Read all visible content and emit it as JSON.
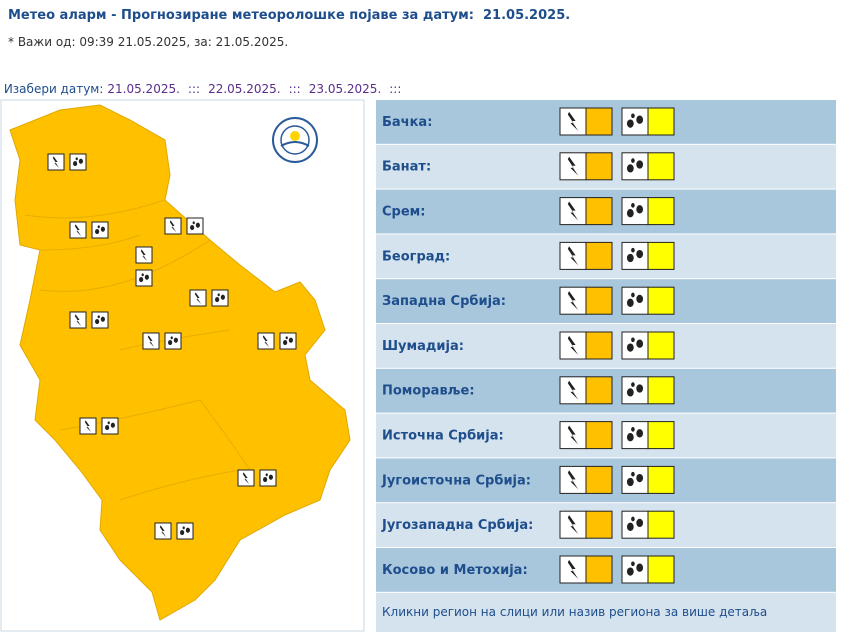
{
  "header": {
    "title": "Метео аларм - Прогнозиране метеоролошке појаве за датум:  21.05.2025.",
    "valid": "* Важи од: 09:39 21.05.2025, за: 21.05.2025."
  },
  "date_selector": {
    "label": "Изабери датум:",
    "dates": [
      "21.05.2025.",
      "22.05.2025.",
      "23.05.2025."
    ],
    "separator": ":::"
  },
  "regions": [
    {
      "name": "Бачка:",
      "warnings": [
        {
          "icon": "thunderstorm",
          "color": "#ffc000"
        },
        {
          "icon": "rain",
          "color": "#ffff00"
        }
      ]
    },
    {
      "name": "Банат:",
      "warnings": [
        {
          "icon": "thunderstorm",
          "color": "#ffc000"
        },
        {
          "icon": "rain",
          "color": "#ffff00"
        }
      ]
    },
    {
      "name": "Срем:",
      "warnings": [
        {
          "icon": "thunderstorm",
          "color": "#ffc000"
        },
        {
          "icon": "rain",
          "color": "#ffff00"
        }
      ]
    },
    {
      "name": "Београд:",
      "warnings": [
        {
          "icon": "thunderstorm",
          "color": "#ffc000"
        },
        {
          "icon": "rain",
          "color": "#ffff00"
        }
      ]
    },
    {
      "name": "Западна Србија:",
      "warnings": [
        {
          "icon": "thunderstorm",
          "color": "#ffc000"
        },
        {
          "icon": "rain",
          "color": "#ffff00"
        }
      ]
    },
    {
      "name": "Шумадија:",
      "warnings": [
        {
          "icon": "thunderstorm",
          "color": "#ffc000"
        },
        {
          "icon": "rain",
          "color": "#ffff00"
        }
      ]
    },
    {
      "name": "Поморавље:",
      "warnings": [
        {
          "icon": "thunderstorm",
          "color": "#ffc000"
        },
        {
          "icon": "rain",
          "color": "#ffff00"
        }
      ]
    },
    {
      "name": "Источна Србија:",
      "warnings": [
        {
          "icon": "thunderstorm",
          "color": "#ffc000"
        },
        {
          "icon": "rain",
          "color": "#ffff00"
        }
      ]
    },
    {
      "name": "Југоисточна Србија:",
      "warnings": [
        {
          "icon": "thunderstorm",
          "color": "#ffc000"
        },
        {
          "icon": "rain",
          "color": "#ffff00"
        }
      ]
    },
    {
      "name": "Југозападна Србија:",
      "warnings": [
        {
          "icon": "thunderstorm",
          "color": "#ffc000"
        },
        {
          "icon": "rain",
          "color": "#ffff00"
        }
      ]
    },
    {
      "name": "Косово и Метохија:",
      "warnings": [
        {
          "icon": "thunderstorm",
          "color": "#ffc000"
        },
        {
          "icon": "rain",
          "color": "#ffff00"
        }
      ]
    }
  ],
  "map_color": "#ffc000",
  "note": "Кликни регион на слици или назив региона за више детаља"
}
